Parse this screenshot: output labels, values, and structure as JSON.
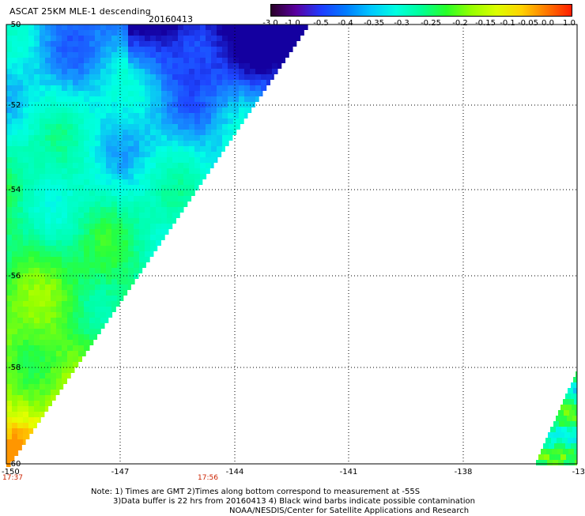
{
  "header": {
    "title": "ASCAT 25KM MLE-1 descending",
    "date": "20160413"
  },
  "colorbar": {
    "labels": [
      "-3.0",
      "-1.0",
      "-0.5",
      "-0.4",
      "-0.35",
      "-0.3",
      "-0.25",
      "-0.2",
      "-0.15",
      "-0.1",
      "-0.05",
      "0.0",
      "1.0"
    ],
    "colors": [
      "#2a0028",
      "#5a00a0",
      "#1e3cff",
      "#007cff",
      "#00c8ff",
      "#00ffe0",
      "#00ff96",
      "#28ff28",
      "#96ff00",
      "#dcff00",
      "#ffd200",
      "#ff7800",
      "#ff1e00"
    ]
  },
  "map": {
    "lat_labels": [
      "-50",
      "-52",
      "-54",
      "-56",
      "-58",
      "-60"
    ],
    "lon_labels": [
      "-150",
      "-147",
      "-144",
      "-141",
      "-138",
      "-13"
    ],
    "time_labels": [
      "17:37",
      "17:56"
    ]
  },
  "footer": {
    "note_line1": "Note: 1) Times are GMT 2)Times along bottom correspond to measurement at -55S",
    "note_line2": "3)Data buffer is 22 hrs from 20160413 4) Black wind barbs indicate possible contamination",
    "note_line3": "NOAA/NESDIS/Center for Satellite Applications and Research"
  }
}
